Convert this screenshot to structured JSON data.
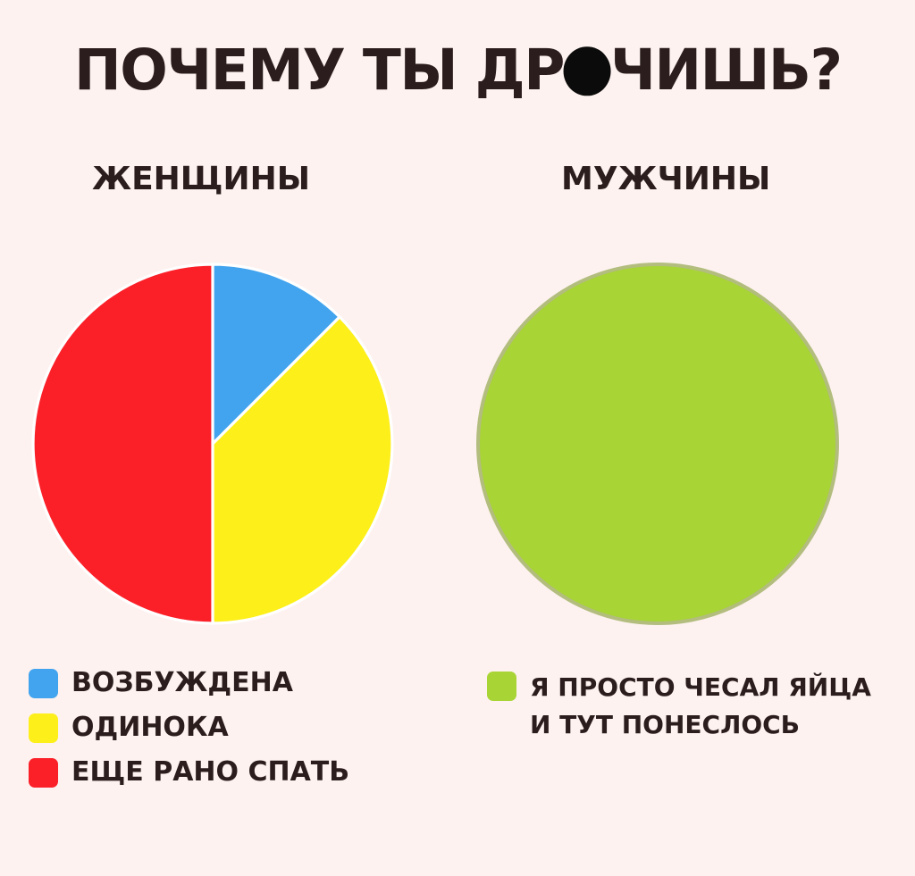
{
  "page": {
    "background": "#fdf2ef",
    "ink": "#2b1d1d",
    "title": {
      "visible_text_before_censor": "ПОЧЕМУ ТЫ ДР",
      "censored_letter": "О",
      "visible_text_after_censor": "ЧИШЬ?",
      "censor_dot_color": "#0b0b0b"
    }
  },
  "chart_data": [
    {
      "type": "pie",
      "title": "ЖЕНЩИНЫ",
      "labels": [
        "ВОЗБУЖДЕНА",
        "ОДИНОКА",
        "ЕЩЕ РАНО СПАТЬ"
      ],
      "values": [
        12.5,
        37.5,
        50
      ],
      "unit": "percent (estimated from slice angles)",
      "colors": [
        "#42a4ee",
        "#fdef19",
        "#fb1f28"
      ],
      "start_angle_deg_from_12_oclock": 0,
      "direction": "clockwise",
      "slice_border_color": "#ffffff",
      "legend_position": "bottom-left"
    },
    {
      "type": "pie",
      "title": "МУЖЧИНЫ",
      "labels": [
        "Я ПРОСТО ЧЕСАЛ ЯЙЦА И ТУТ ПОНЕСЛОСЬ"
      ],
      "values": [
        100
      ],
      "unit": "percent (estimated from slice angles)",
      "colors": [
        "#a8d435"
      ],
      "outline_color": "#b2bd7e",
      "legend_position": "bottom-left"
    }
  ]
}
